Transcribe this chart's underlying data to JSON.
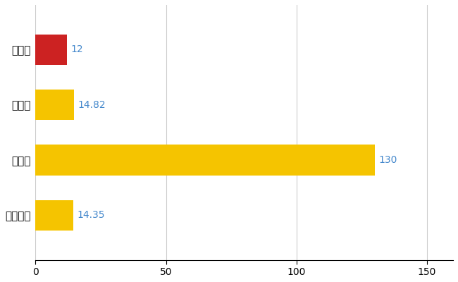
{
  "categories": [
    "岩様区",
    "県平均",
    "県最大",
    "全国平均"
  ],
  "values": [
    12,
    14.82,
    130,
    14.35
  ],
  "bar_colors": [
    "#cc2222",
    "#f5c400",
    "#f5c400",
    "#f5c400"
  ],
  "value_labels": [
    "12",
    "14.82",
    "130",
    "14.35"
  ],
  "label_color": "#4488cc",
  "xlim": [
    0,
    160
  ],
  "xticks": [
    0,
    50,
    100,
    150
  ],
  "grid_color": "#cccccc",
  "background_color": "#ffffff",
  "bar_height": 0.55,
  "label_fontsize": 10,
  "tick_fontsize": 10,
  "ytick_fontsize": 11
}
